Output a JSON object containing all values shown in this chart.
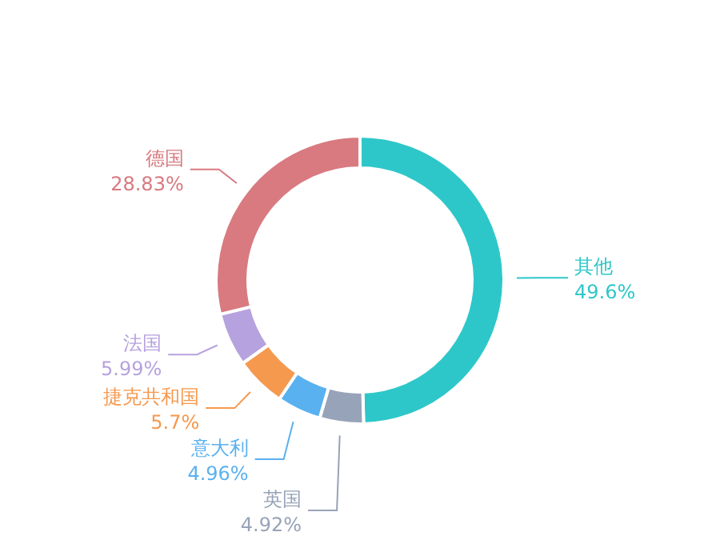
{
  "chart_data": {
    "type": "donut",
    "categories": [
      "其他",
      "英国",
      "意大利",
      "捷克共和国",
      "法国",
      "德国"
    ],
    "values": [
      49.6,
      4.92,
      4.96,
      5.7,
      5.99,
      28.83
    ],
    "value_labels": [
      "49.6%",
      "4.92%",
      "4.96%",
      "5.7%",
      "5.99%",
      "28.83%"
    ],
    "colors": [
      "#2ec7c9",
      "#97a3b8",
      "#5ab1ef",
      "#f5994e",
      "#b6a2de",
      "#d87a80"
    ],
    "legend": false
  }
}
